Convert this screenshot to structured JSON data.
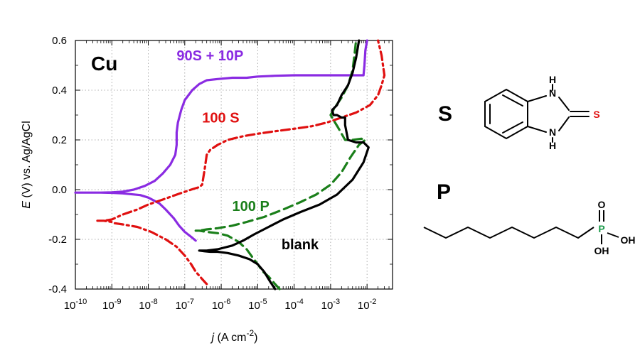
{
  "chart_data": {
    "type": "line",
    "xscale": "log",
    "xlim": [
      1e-10,
      0.05
    ],
    "ylim": [
      -0.4,
      0.6
    ],
    "grid": true,
    "xticks": [
      {
        "base": "10",
        "exp": "-10"
      },
      {
        "base": "10",
        "exp": "-9"
      },
      {
        "base": "10",
        "exp": "-8"
      },
      {
        "base": "10",
        "exp": "-7"
      },
      {
        "base": "10",
        "exp": "-6"
      },
      {
        "base": "10",
        "exp": "-5"
      },
      {
        "base": "10",
        "exp": "-4"
      },
      {
        "base": "10",
        "exp": "-3"
      },
      {
        "base": "10",
        "exp": "-2"
      }
    ],
    "yticks": [
      "-0.4",
      "-0.2",
      "0.0",
      "0.2",
      "0.4",
      "0.6"
    ],
    "xlabel": {
      "var": "j",
      "unit": " (A cm",
      "exp": "-2",
      "close": ")"
    },
    "ylabel": {
      "var": "E",
      "rest": " (V) vs. Ag/AgCl"
    },
    "panel_label": "Cu",
    "series": [
      {
        "name": "90S + 10P",
        "color": "#8a2be2",
        "dash": "solid",
        "label_pos": {
          "x": 6e-08,
          "y": 0.52
        },
        "x": [
          2e-07,
          1.5e-07,
          1e-07,
          7e-08,
          5e-08,
          3e-08,
          2e-08,
          1e-08,
          6e-09,
          2e-09,
          1e-09,
          5e-10,
          2e-10,
          1e-10,
          2e-10,
          5e-10,
          1e-09,
          2e-09,
          4e-09,
          8e-09,
          1.5e-08,
          2.5e-08,
          4e-08,
          5.5e-08,
          6e-08,
          6e-08,
          6.5e-08,
          8e-08,
          1e-07,
          1.6e-07,
          2.5e-07,
          4e-07,
          8e-07,
          2e-06,
          5e-06,
          1e-05,
          3e-05,
          0.0001,
          0.0005,
          0.002,
          0.005,
          0.008,
          0.0085,
          0.009,
          0.01
        ],
        "y": [
          -0.205,
          -0.19,
          -0.17,
          -0.145,
          -0.115,
          -0.08,
          -0.055,
          -0.032,
          -0.022,
          -0.015,
          -0.013,
          -0.012,
          -0.012,
          -0.012,
          -0.012,
          -0.012,
          -0.011,
          -0.008,
          0.0,
          0.015,
          0.035,
          0.065,
          0.1,
          0.14,
          0.18,
          0.23,
          0.27,
          0.32,
          0.36,
          0.4,
          0.425,
          0.44,
          0.445,
          0.45,
          0.45,
          0.455,
          0.458,
          0.46,
          0.46,
          0.46,
          0.46,
          0.46,
          0.5,
          0.56,
          0.6
        ]
      },
      {
        "name": "100 S",
        "color": "#e01010",
        "dash": "dashdot",
        "label_pos": {
          "x": 3e-07,
          "y": 0.27
        },
        "x": [
          4e-07,
          3e-07,
          2e-07,
          1.5e-07,
          1e-07,
          6e-08,
          3e-08,
          1.2e-08,
          5e-09,
          2e-09,
          1.2e-09,
          1e-09,
          6e-10,
          4e-10,
          6e-10,
          1e-09,
          2e-09,
          5e-09,
          1e-08,
          2.5e-08,
          6e-08,
          1.5e-07,
          2.5e-07,
          3e-07,
          3.5e-07,
          4e-07,
          5e-07,
          8e-07,
          1.5e-06,
          4e-06,
          1e-05,
          3e-05,
          0.0001,
          0.0003,
          0.0008,
          0.002,
          0.005,
          0.012,
          0.02,
          0.025,
          0.03,
          0.025,
          0.02
        ],
        "y": [
          -0.38,
          -0.36,
          -0.33,
          -0.3,
          -0.265,
          -0.23,
          -0.2,
          -0.17,
          -0.15,
          -0.14,
          -0.135,
          -0.13,
          -0.125,
          -0.125,
          -0.125,
          -0.12,
          -0.1,
          -0.08,
          -0.06,
          -0.04,
          -0.02,
          0.0,
          0.01,
          0.02,
          0.08,
          0.14,
          0.16,
          0.18,
          0.2,
          0.215,
          0.225,
          0.235,
          0.245,
          0.255,
          0.27,
          0.29,
          0.31,
          0.34,
          0.38,
          0.42,
          0.46,
          0.54,
          0.6
        ]
      },
      {
        "name": "100 P",
        "color": "#1a7f1a",
        "dash": "dashed",
        "label_pos": {
          "x": 2e-06,
          "y": -0.085
        },
        "x": [
          4e-05,
          3e-05,
          2e-05,
          1.4e-05,
          1e-05,
          7e-06,
          5e-06,
          3e-06,
          1.5e-06,
          8e-07,
          4e-07,
          2.5e-07,
          2e-07,
          2.5e-07,
          4e-07,
          8e-07,
          2e-06,
          5e-06,
          1.5e-05,
          5e-05,
          0.00015,
          0.0004,
          0.001,
          0.002,
          0.0035,
          0.006,
          0.009,
          0.007,
          0.004,
          0.0025,
          0.0016,
          0.0012,
          0.001,
          0.0013,
          0.002,
          0.003,
          0.004,
          0.0045,
          0.005
        ],
        "y": [
          -0.4,
          -0.38,
          -0.35,
          -0.33,
          -0.3,
          -0.27,
          -0.24,
          -0.21,
          -0.185,
          -0.175,
          -0.17,
          -0.165,
          -0.165,
          -0.165,
          -0.16,
          -0.155,
          -0.145,
          -0.13,
          -0.11,
          -0.08,
          -0.05,
          -0.02,
          0.02,
          0.07,
          0.13,
          0.18,
          0.2,
          0.205,
          0.2,
          0.2,
          0.25,
          0.28,
          0.3,
          0.33,
          0.37,
          0.42,
          0.48,
          0.54,
          0.6
        ]
      },
      {
        "name": "blank",
        "color": "#000000",
        "dash": "solid",
        "label_pos": {
          "x": 4.5e-05,
          "y": -0.24
        },
        "x": [
          3e-05,
          2.2e-05,
          1.5e-05,
          1e-05,
          6e-06,
          3e-06,
          1.5e-06,
          8e-07,
          5e-07,
          3.5e-07,
          2.5e-07,
          4e-07,
          8e-07,
          2e-06,
          4e-06,
          8e-06,
          2e-05,
          5e-05,
          0.00015,
          0.0005,
          0.0015,
          0.004,
          0.008,
          0.011,
          0.008,
          0.005,
          0.003,
          0.0025,
          0.0025,
          0.002,
          0.0015,
          0.0012,
          0.0011,
          0.0015,
          0.002,
          0.003,
          0.004,
          0.005,
          0.006
        ],
        "y": [
          -0.4,
          -0.37,
          -0.33,
          -0.3,
          -0.28,
          -0.265,
          -0.255,
          -0.25,
          -0.25,
          -0.248,
          -0.245,
          -0.245,
          -0.24,
          -0.225,
          -0.205,
          -0.18,
          -0.15,
          -0.12,
          -0.09,
          -0.06,
          -0.02,
          0.04,
          0.11,
          0.17,
          0.19,
          0.19,
          0.2,
          0.26,
          0.29,
          0.29,
          0.3,
          0.3,
          0.32,
          0.34,
          0.38,
          0.42,
          0.47,
          0.53,
          0.6
        ]
      }
    ]
  },
  "structures": {
    "s_label": "S",
    "p_label": "P",
    "s_atoms": {
      "nh_top": "H",
      "n_top": "N",
      "n_bottom": "N",
      "nh_bottom": "H",
      "thione": "S"
    },
    "p_atoms": {
      "p": "P",
      "o_top": "O",
      "oh_right": "OH",
      "oh_bottom": "OH"
    },
    "colors": {
      "sulfur": "#e01010",
      "phosphorus": "#1a9a4a"
    }
  }
}
